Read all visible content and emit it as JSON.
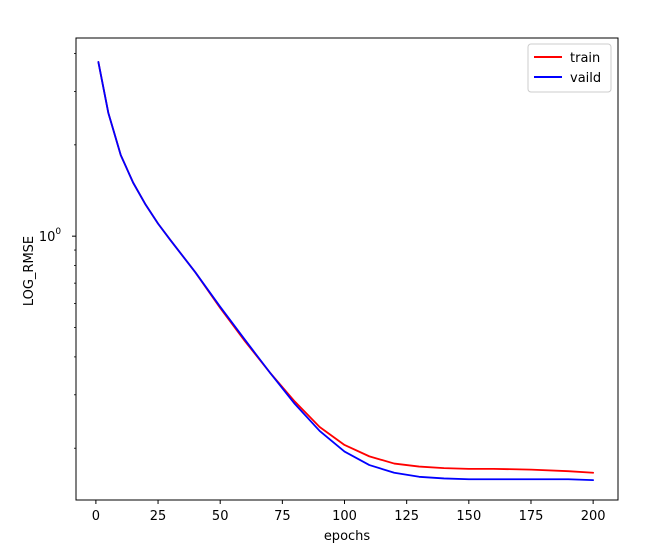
{
  "chart_data": {
    "type": "line",
    "xlabel": "epochs",
    "ylabel": "LOG_RMSE",
    "xscale": "linear",
    "yscale": "log",
    "xlim": [
      -8,
      210
    ],
    "ylim": [
      0.135,
      4.5
    ],
    "x_ticks": [
      0,
      25,
      50,
      75,
      100,
      125,
      150,
      175,
      200
    ],
    "x_tick_labels": [
      "0",
      "25",
      "50",
      "75",
      "100",
      "125",
      "150",
      "175",
      "200"
    ],
    "y_major_ticks": [
      1
    ],
    "y_major_tick_label_base": "10",
    "y_major_tick_label_exp": "0",
    "legend": {
      "position": "top-right",
      "entries": [
        "train",
        "vaild"
      ]
    },
    "grid": false,
    "series": [
      {
        "name": "train",
        "color": "#ff0000",
        "x": [
          1,
          5,
          10,
          15,
          20,
          25,
          30,
          40,
          50,
          60,
          70,
          80,
          90,
          100,
          110,
          120,
          130,
          140,
          150,
          160,
          175,
          190,
          200
        ],
        "values": [
          3.75,
          2.55,
          1.85,
          1.5,
          1.27,
          1.1,
          0.97,
          0.76,
          0.58,
          0.45,
          0.355,
          0.285,
          0.235,
          0.205,
          0.188,
          0.178,
          0.174,
          0.172,
          0.171,
          0.171,
          0.17,
          0.168,
          0.166
        ]
      },
      {
        "name": "vaild",
        "color": "#0000ff",
        "x": [
          1,
          5,
          10,
          15,
          20,
          25,
          30,
          40,
          50,
          60,
          70,
          80,
          90,
          100,
          110,
          120,
          130,
          140,
          150,
          160,
          175,
          190,
          200
        ],
        "values": [
          3.75,
          2.55,
          1.85,
          1.5,
          1.27,
          1.1,
          0.97,
          0.76,
          0.585,
          0.455,
          0.355,
          0.28,
          0.228,
          0.195,
          0.176,
          0.166,
          0.161,
          0.159,
          0.158,
          0.158,
          0.158,
          0.158,
          0.157
        ]
      }
    ]
  }
}
